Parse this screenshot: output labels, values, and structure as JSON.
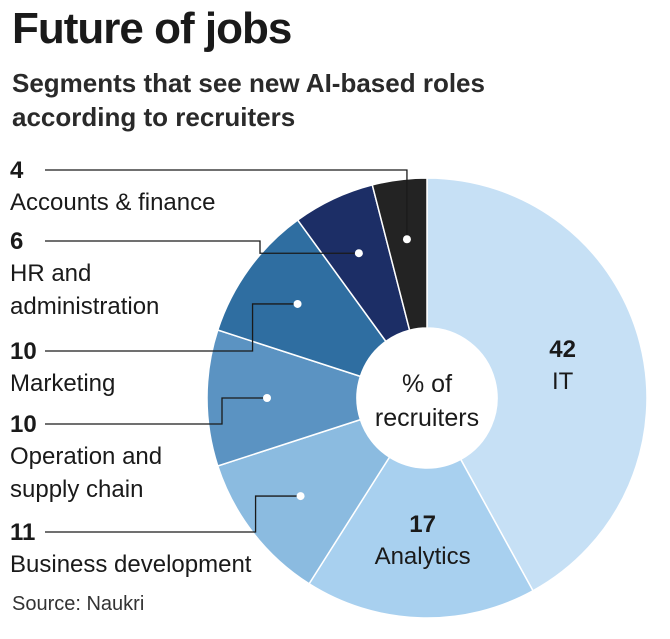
{
  "title": "Future of jobs",
  "subtitle": "Segments that see new AI-based roles according to recruiters",
  "source": "Source: Naukri",
  "center_label": [
    "% of",
    "recruiters"
  ],
  "chart_data": {
    "type": "pie",
    "title": "Future of jobs",
    "subtitle": "Segments that see new AI-based roles according to recruiters",
    "categories": [
      "IT",
      "Analytics",
      "Business development",
      "Operation and supply chain",
      "Marketing",
      "HR and administration",
      "Accounts & finance"
    ],
    "values": [
      42,
      17,
      11,
      10,
      10,
      6,
      4
    ],
    "colors": [
      "#c6e0f5",
      "#a8d0ef",
      "#8bbbe0",
      "#5b93c2",
      "#2f6ea1",
      "#1c2e66",
      "#232323"
    ],
    "unit": "% of recruiters",
    "label_lines": [
      {
        "value": "4",
        "name": [
          "Accounts & finance"
        ]
      },
      {
        "value": "6",
        "name": [
          "HR and",
          "administration"
        ]
      },
      {
        "value": "10",
        "name": [
          "Marketing"
        ]
      },
      {
        "value": "10",
        "name": [
          "Operation and",
          "supply chain"
        ]
      },
      {
        "value": "11",
        "name": [
          "Business development"
        ]
      }
    ],
    "inner_labels": [
      {
        "value": "42",
        "name": "IT"
      },
      {
        "value": "17",
        "name": "Analytics"
      }
    ]
  }
}
